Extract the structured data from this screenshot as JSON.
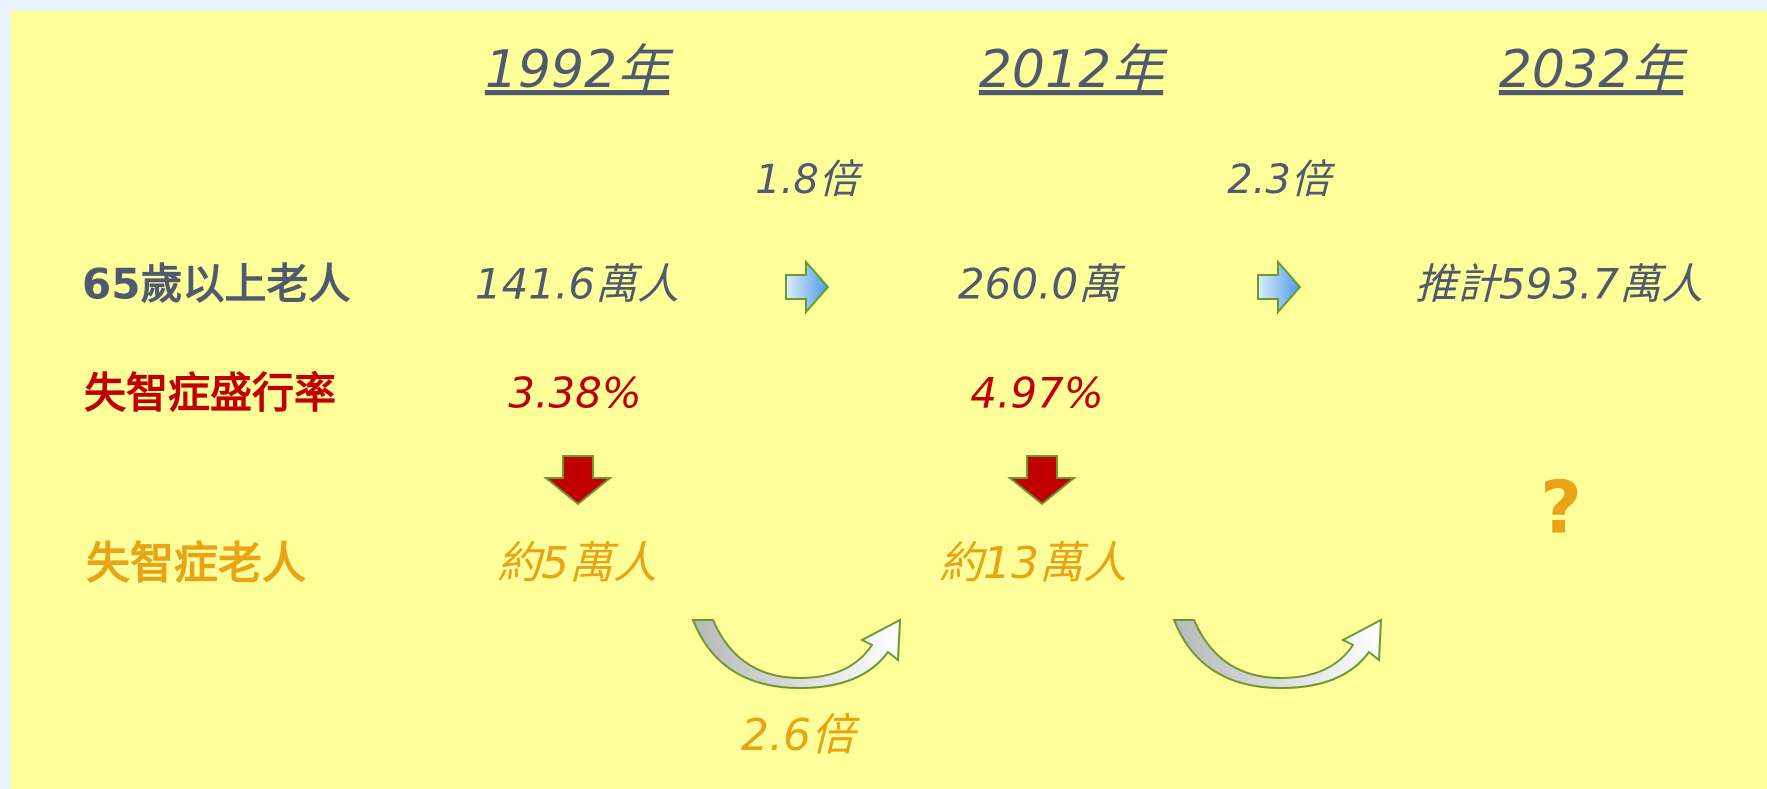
{
  "years": [
    "1992年",
    "2012年",
    "2032年"
  ],
  "multipliers": {
    "elderly": [
      "1.8倍",
      "2.3倍"
    ],
    "dementia": [
      "2.6倍"
    ]
  },
  "rows": [
    {
      "label": "65歲以上老人",
      "values": [
        "141.6萬人",
        "260.0萬",
        "推計593.7萬人"
      ]
    },
    {
      "label": "失智症盛行率",
      "values": [
        "3.38%",
        "4.97%"
      ]
    },
    {
      "label": "失智症老人",
      "values": [
        "約5萬人",
        "約13萬人",
        "?"
      ]
    }
  ]
}
